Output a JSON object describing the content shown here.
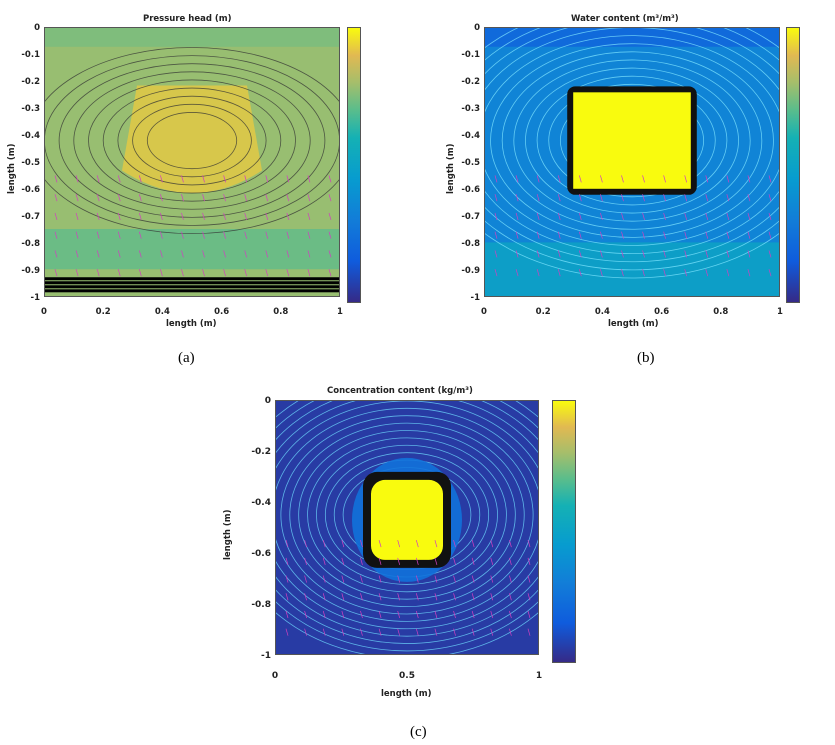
{
  "chart_data": [
    {
      "id": "a",
      "type": "heatmap",
      "caption": "(a)",
      "title": "Pressure head (m)",
      "xlabel": "length (m)",
      "ylabel": "length (m)",
      "xlim": [
        0,
        1
      ],
      "ylim": [
        -1,
        0
      ],
      "xticks": [
        "0",
        "0.2",
        "0.4",
        "0.6",
        "0.8",
        "1"
      ],
      "yticks": [
        "0",
        "-0.1",
        "-0.2",
        "-0.3",
        "-0.4",
        "-0.5",
        "-0.6",
        "-0.7",
        "-0.8",
        "-0.9",
        "-1"
      ],
      "colorbar": {
        "min": -0.97,
        "max": -0.05,
        "ticks": [
          "-0.1",
          "-0.2",
          "-0.3",
          "-0.4",
          "-0.5",
          "-0.6",
          "-0.7",
          "-0.8",
          "-0.9"
        ]
      },
      "field": {
        "background": -0.25,
        "blob_center": [
          0.5,
          -0.42
        ],
        "blob_value": -0.12,
        "bottom_layer_value": -0.95
      }
    },
    {
      "id": "b",
      "type": "heatmap",
      "caption": "(b)",
      "title": "Water content (m³/m³)",
      "xlabel": "length (m)",
      "ylabel": "length (m)",
      "xlim": [
        0,
        1
      ],
      "ylim": [
        -1,
        0
      ],
      "xticks": [
        "0",
        "0.2",
        "0.4",
        "0.6",
        "0.8",
        "1"
      ],
      "yticks": [
        "0",
        "-0.1",
        "-0.2",
        "-0.3",
        "-0.4",
        "-0.5",
        "-0.6",
        "-0.7",
        "-0.8",
        "-0.9",
        "-1"
      ],
      "colorbar": {
        "min": 0.05,
        "max": 0.38,
        "ticks": [
          "0.35",
          "0.3",
          "0.25",
          "0.2",
          "0.15",
          "0.1"
        ]
      },
      "field": {
        "background": 0.16,
        "square_x": [
          0.3,
          0.7
        ],
        "square_y": [
          -0.6,
          -0.24
        ],
        "square_value": 0.38
      }
    },
    {
      "id": "c",
      "type": "heatmap",
      "caption": "(c)",
      "title": "Concentration content (kg/m³)",
      "xlabel": "length (m)",
      "ylabel": "length (m)",
      "xlim": [
        0,
        1
      ],
      "ylim": [
        -1,
        0
      ],
      "xticks": [
        "0",
        "0.5",
        "1"
      ],
      "yticks": [
        "0",
        "-0.2",
        "-0.4",
        "-0.6",
        "-0.8",
        "-1"
      ],
      "colorbar": {
        "min": 0,
        "max": 1,
        "ticks": [
          "0.8",
          "0.6",
          "0.4",
          "0.2",
          "0"
        ]
      },
      "field": {
        "background": 0.05,
        "blob_center": [
          0.5,
          -0.47
        ],
        "blob_value": 1.0
      }
    }
  ]
}
